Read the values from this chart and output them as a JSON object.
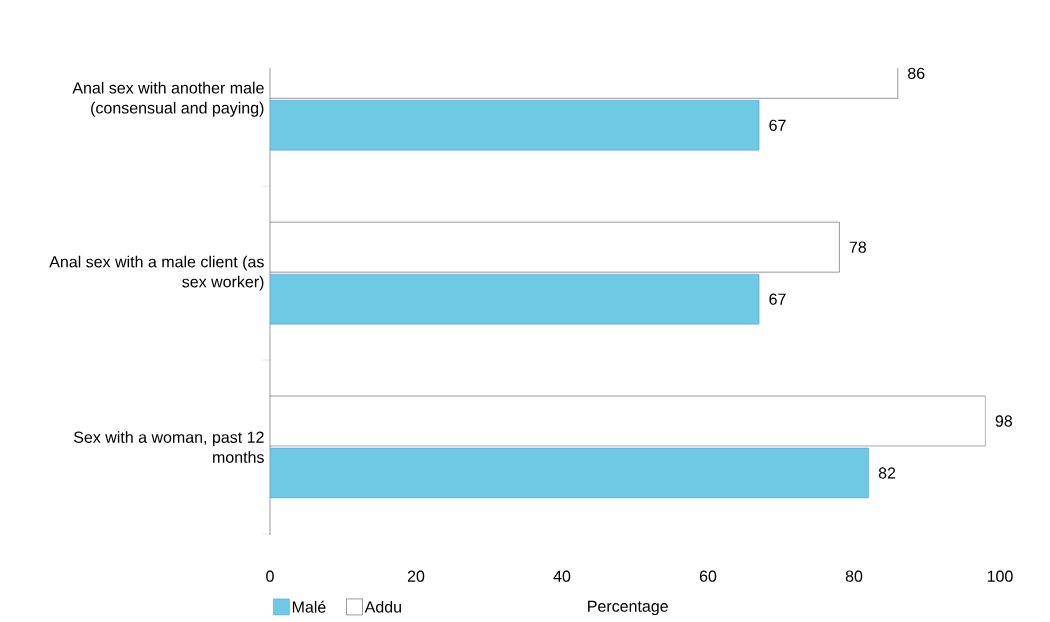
{
  "chart_data": {
    "type": "bar",
    "orientation": "horizontal",
    "xlabel": "Percentage",
    "categories": [
      "Anal sex with another male (consensual and paying)",
      "Anal sex with a male client (as sex worker)",
      "Sex with a woman, past 12 months"
    ],
    "series": [
      {
        "name": "Malé",
        "color": "#6ecae4",
        "values": [
          67,
          67,
          82
        ]
      },
      {
        "name": "Addu",
        "color": "#ffffff",
        "values": [
          86,
          78,
          98
        ]
      }
    ],
    "xlim": [
      0,
      100
    ],
    "xticks": [
      0,
      20,
      40,
      60,
      80,
      100
    ],
    "data_labels": true,
    "legend": "bottom left",
    "grid": false
  }
}
